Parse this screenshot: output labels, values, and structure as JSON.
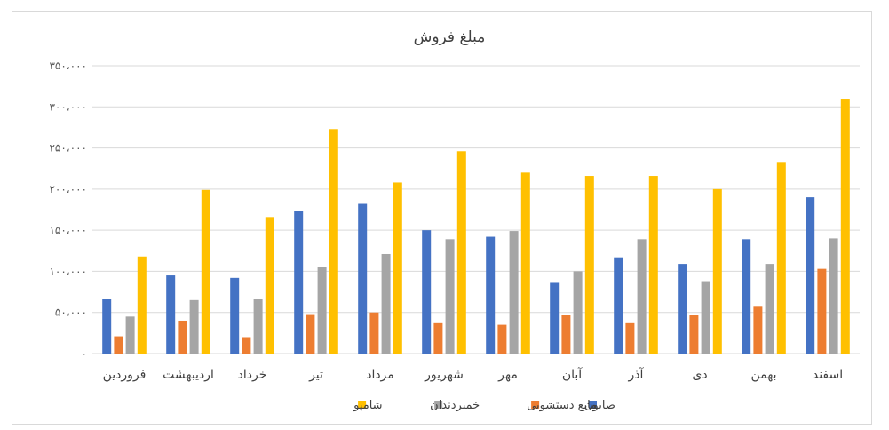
{
  "chart_data": {
    "type": "bar",
    "title": "مبلغ فروش",
    "xlabel": "",
    "ylabel": "",
    "ylim": [
      0,
      350000
    ],
    "ytick_values": [
      0,
      50000,
      100000,
      150000,
      200000,
      250000,
      300000,
      350000
    ],
    "ytick_labels": [
      "۰",
      "۵۰،۰۰۰",
      "۱۰۰،۰۰۰",
      "۱۵۰،۰۰۰",
      "۲۰۰،۰۰۰",
      "۲۵۰،۰۰۰",
      "۳۰۰،۰۰۰",
      "۳۵۰،۰۰۰"
    ],
    "categories": [
      "فروردین",
      "اردیبهشت",
      "خرداد",
      "تیر",
      "مرداد",
      "شهریور",
      "مهر",
      "آبان",
      "آذر",
      "دی",
      "بهمن",
      "اسفند"
    ],
    "grid": true,
    "legend_position": "bottom",
    "series": [
      {
        "name": "صابون",
        "color": "#4472C4",
        "values": [
          66000,
          95000,
          92000,
          173000,
          182000,
          150000,
          142000,
          87000,
          117000,
          109000,
          139000,
          190000
        ]
      },
      {
        "name": "مایع دستشویی",
        "color": "#ED7D31",
        "values": [
          21000,
          40000,
          20000,
          48000,
          50000,
          38000,
          35000,
          47000,
          38000,
          47000,
          58000,
          103000
        ]
      },
      {
        "name": "خمیردندان",
        "color": "#A5A5A5",
        "values": [
          45000,
          65000,
          66000,
          105000,
          121000,
          139000,
          149000,
          100000,
          139000,
          88000,
          109000,
          140000
        ]
      },
      {
        "name": "شامپو",
        "color": "#FFC000",
        "values": [
          118000,
          199000,
          166000,
          273000,
          208000,
          246000,
          220000,
          216000,
          216000,
          200000,
          233000,
          310000
        ]
      }
    ]
  }
}
